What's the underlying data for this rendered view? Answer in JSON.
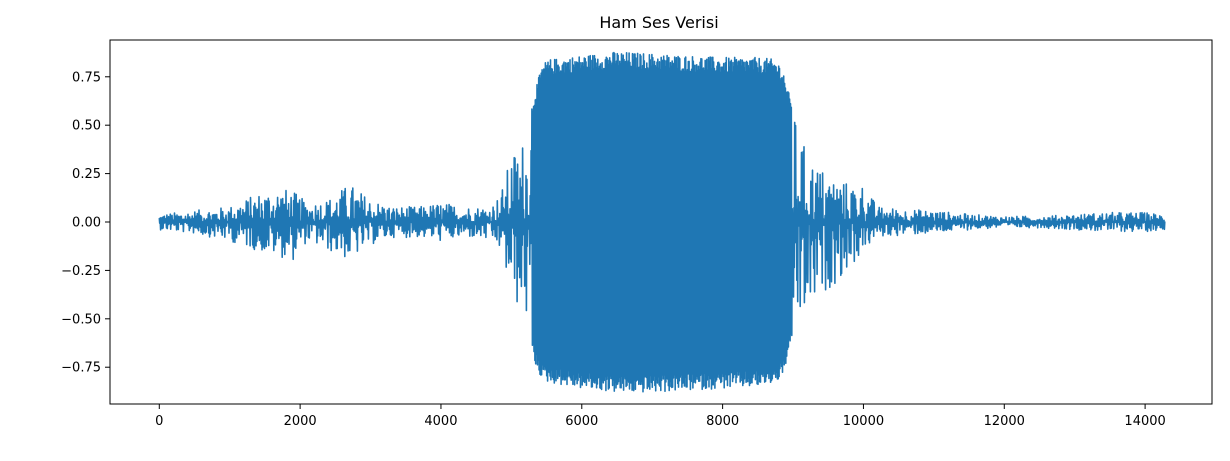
{
  "chart_data": {
    "type": "line",
    "title": "Ham Ses Verisi",
    "xlabel": "",
    "ylabel": "",
    "xlim": [
      -700,
      14950
    ],
    "ylim": [
      -0.94,
      0.94
    ],
    "x_ticks": [
      0,
      2000,
      4000,
      6000,
      8000,
      10000,
      12000,
      14000
    ],
    "x_tick_labels": [
      "0",
      "2000",
      "4000",
      "6000",
      "8000",
      "10000",
      "12000",
      "14000"
    ],
    "y_ticks": [
      0.75,
      0.5,
      0.25,
      0.0,
      -0.25,
      -0.5,
      -0.75
    ],
    "y_tick_labels": [
      "0.75",
      "0.50",
      "0.25",
      "0.00",
      "−0.25",
      "−0.50",
      "−0.75"
    ],
    "grid": false,
    "legend": "none",
    "series": [
      {
        "color": "#1f77b4",
        "sample_count": 14280,
        "envelope": {
          "x": [
            0,
            500,
            1000,
            1400,
            1700,
            1900,
            2100,
            2400,
            2700,
            3000,
            3300,
            3700,
            4000,
            4400,
            4700,
            4850,
            5000,
            5200,
            5350,
            5450,
            5550,
            6000,
            6500,
            7000,
            7500,
            8000,
            8500,
            8750,
            8850,
            9000,
            9200,
            9500,
            9800,
            10000,
            10200,
            10500,
            11000,
            11500,
            12000,
            12500,
            13000,
            13500,
            14000,
            14280
          ],
          "upper": [
            0.04,
            0.06,
            0.08,
            0.15,
            0.18,
            0.16,
            0.1,
            0.12,
            0.2,
            0.12,
            0.08,
            0.08,
            0.1,
            0.08,
            0.08,
            0.15,
            0.35,
            0.45,
            0.7,
            0.82,
            0.84,
            0.86,
            0.88,
            0.87,
            0.86,
            0.85,
            0.85,
            0.84,
            0.8,
            0.58,
            0.35,
            0.25,
            0.2,
            0.2,
            0.08,
            0.07,
            0.06,
            0.04,
            0.03,
            0.03,
            0.04,
            0.05,
            0.05,
            0.04
          ],
          "lower": [
            -0.04,
            -0.06,
            -0.1,
            -0.15,
            -0.18,
            -0.2,
            -0.1,
            -0.15,
            -0.2,
            -0.12,
            -0.08,
            -0.08,
            -0.1,
            -0.08,
            -0.1,
            -0.15,
            -0.4,
            -0.5,
            -0.75,
            -0.82,
            -0.83,
            -0.86,
            -0.88,
            -0.88,
            -0.87,
            -0.86,
            -0.85,
            -0.83,
            -0.8,
            -0.6,
            -0.5,
            -0.35,
            -0.25,
            -0.15,
            -0.08,
            -0.07,
            -0.06,
            -0.04,
            -0.03,
            -0.03,
            -0.04,
            -0.05,
            -0.05,
            -0.04
          ]
        }
      }
    ]
  }
}
